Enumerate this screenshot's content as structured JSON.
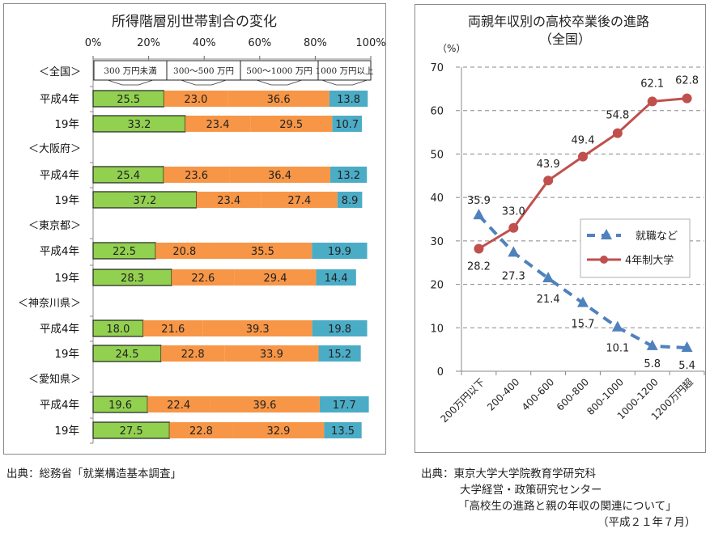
{
  "chart_data": [
    {
      "type": "bar",
      "orientation": "horizontal-stacked-100",
      "title": "所得階層別世帯割合の変化",
      "xlabel": "",
      "ylabel": "",
      "xlim": [
        0,
        100
      ],
      "x_ticks": [
        "0%",
        "20%",
        "40%",
        "60%",
        "80%",
        "100%"
      ],
      "legend": {
        "placement": "top",
        "entries": [
          "300 万円未満",
          "300～500 万円",
          "500～1000 万円",
          "1000 万円以上"
        ]
      },
      "colors": [
        "#92d050",
        "#f79646",
        "#f79646",
        "#4bacc6"
      ],
      "groups": [
        {
          "label": "＜全国＞",
          "rows": [
            {
              "label": "平成4年",
              "values": [
                25.5,
                23.0,
                36.6,
                13.8
              ]
            },
            {
              "label": "19年",
              "values": [
                33.2,
                23.4,
                29.5,
                10.7
              ]
            }
          ]
        },
        {
          "label": "＜大阪府＞",
          "rows": [
            {
              "label": "平成4年",
              "values": [
                25.4,
                23.6,
                36.4,
                13.2
              ]
            },
            {
              "label": "19年",
              "values": [
                37.2,
                23.4,
                27.4,
                8.9
              ]
            }
          ]
        },
        {
          "label": "＜東京都＞",
          "rows": [
            {
              "label": "平成4年",
              "values": [
                22.5,
                20.8,
                35.5,
                19.9
              ]
            },
            {
              "label": "19年",
              "values": [
                28.3,
                22.6,
                29.4,
                14.4
              ]
            }
          ]
        },
        {
          "label": "＜神奈川県＞",
          "rows": [
            {
              "label": "平成4年",
              "values": [
                18.0,
                21.6,
                39.3,
                19.8
              ]
            },
            {
              "label": "19年",
              "values": [
                24.5,
                22.8,
                33.9,
                15.2
              ]
            }
          ]
        },
        {
          "label": "＜愛知県＞",
          "rows": [
            {
              "label": "平成4年",
              "values": [
                19.6,
                22.4,
                39.6,
                17.7
              ]
            },
            {
              "label": "19年",
              "values": [
                27.5,
                22.8,
                32.9,
                13.5
              ]
            }
          ]
        }
      ]
    },
    {
      "type": "line",
      "title": "両親年収別の高校卒業後の進路",
      "subtitle": "（全国）",
      "ylabel": "（%）",
      "xlabel": "",
      "ylim": [
        0,
        70
      ],
      "y_ticks": [
        0,
        10,
        20,
        30,
        40,
        50,
        60,
        70
      ],
      "grid": true,
      "categories": [
        "200万円以下",
        "200-400",
        "400-600",
        "600-800",
        "800-1000",
        "1000-1200",
        "1200万円超"
      ],
      "legend": {
        "placement": "center-right"
      },
      "series": [
        {
          "name": "就職など",
          "color": "#4f81bd",
          "style": "dashed",
          "marker": "triangle",
          "values": [
            35.9,
            27.3,
            21.4,
            15.7,
            10.1,
            5.8,
            5.4
          ]
        },
        {
          "name": "4年制大学",
          "color": "#c0504d",
          "style": "solid",
          "marker": "circle",
          "values": [
            28.2,
            33.0,
            43.9,
            49.4,
            54.8,
            62.1,
            62.8
          ]
        }
      ]
    }
  ],
  "sources": {
    "left": "出典：総務省「就業構造基本調査」",
    "right": [
      "出典：東京大学大学院教育学研究科",
      "大学経営・政策研究センター",
      "「高校生の進路と親の年収の関連について」",
      "（平成２１年７月）"
    ]
  }
}
